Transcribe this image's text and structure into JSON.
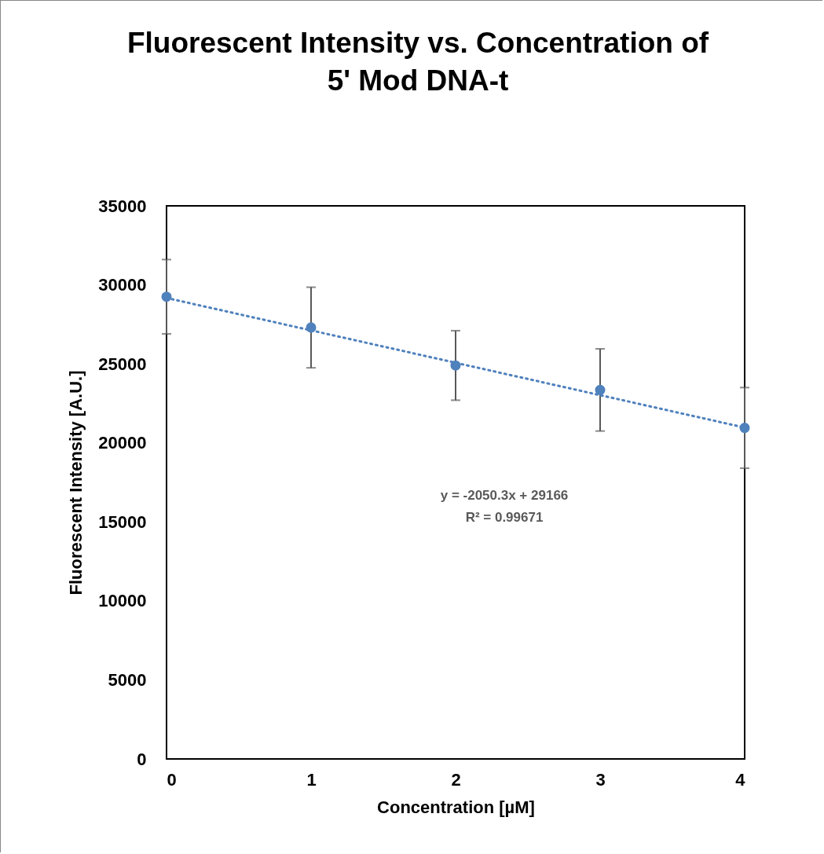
{
  "chart_data": {
    "type": "scatter",
    "title": "Fluorescent Intensity vs. Concentration of 5' Mod DNA-t",
    "xlabel": "Concentration [µM]",
    "ylabel": "Fluorescent Intensity [A.U.]",
    "xlim": [
      0,
      4
    ],
    "xticks": [
      0,
      1,
      2,
      3,
      4
    ],
    "ylim": [
      0,
      35000
    ],
    "yticks": [
      0,
      5000,
      10000,
      15000,
      20000,
      25000,
      30000,
      35000
    ],
    "marker": "circle",
    "series": [
      {
        "type": "scatter",
        "color": "#4f81bd",
        "x": [
          0,
          1,
          2,
          3,
          4
        ],
        "values": [
          29250,
          27300,
          24900,
          23350,
          20950
        ],
        "errors": [
          2350,
          2550,
          2200,
          2600,
          2550
        ]
      },
      {
        "type": "line",
        "color": "#4f81bd",
        "line_style": "dotted",
        "marker": "none",
        "x": [
          0,
          4
        ],
        "values": [
          29170,
          20970
        ]
      }
    ],
    "annotations": [
      "y = -2050.3x + 29166",
      "R² = 0.99671"
    ]
  }
}
